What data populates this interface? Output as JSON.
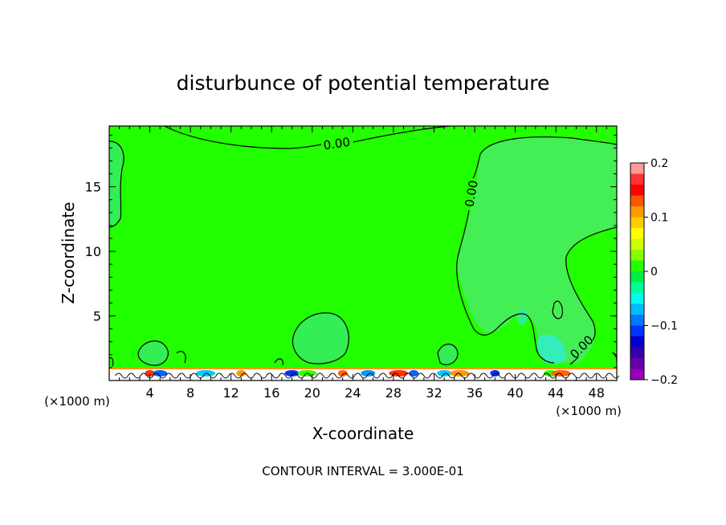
{
  "chart_data": {
    "type": "heatmap",
    "title": "disturbunce of potential temperature",
    "xlabel": "X-coordinate",
    "ylabel": "Z-coordinate",
    "x_unit_label": "(×1000 m)",
    "x_unit_label_right": "(×1000 m)",
    "xlim": [
      0,
      50
    ],
    "ylim": [
      0,
      19.7
    ],
    "x_ticks": [
      4,
      8,
      12,
      16,
      20,
      24,
      28,
      32,
      36,
      40,
      44,
      48
    ],
    "y_ticks": [
      5,
      10,
      15
    ],
    "contour_labels": [
      "0.00",
      "0.00",
      "0.00"
    ],
    "colorbar": {
      "min": -0.2,
      "max": 0.2,
      "tick_values": [
        0.2,
        0.1,
        0,
        -0.1,
        -0.2
      ],
      "tick_labels": [
        "0.2",
        "0.1",
        "0",
        "−0.1",
        "−0.2"
      ],
      "colors": [
        "#ff9999",
        "#ff3333",
        "#ff0000",
        "#ff5500",
        "#ff9900",
        "#ffcc00",
        "#ffff00",
        "#ccff00",
        "#88ff00",
        "#22ff00",
        "#00ee44",
        "#00ff99",
        "#00ffee",
        "#00bbff",
        "#0077ff",
        "#0033ff",
        "#0000cc",
        "#3300aa",
        "#6600aa",
        "#9900bb"
      ]
    },
    "footer": "CONTOUR INTERVAL = 3.000E-01",
    "colors": {
      "background_field": "#22ff00",
      "weak_negative_field": "#44ee55"
    }
  }
}
